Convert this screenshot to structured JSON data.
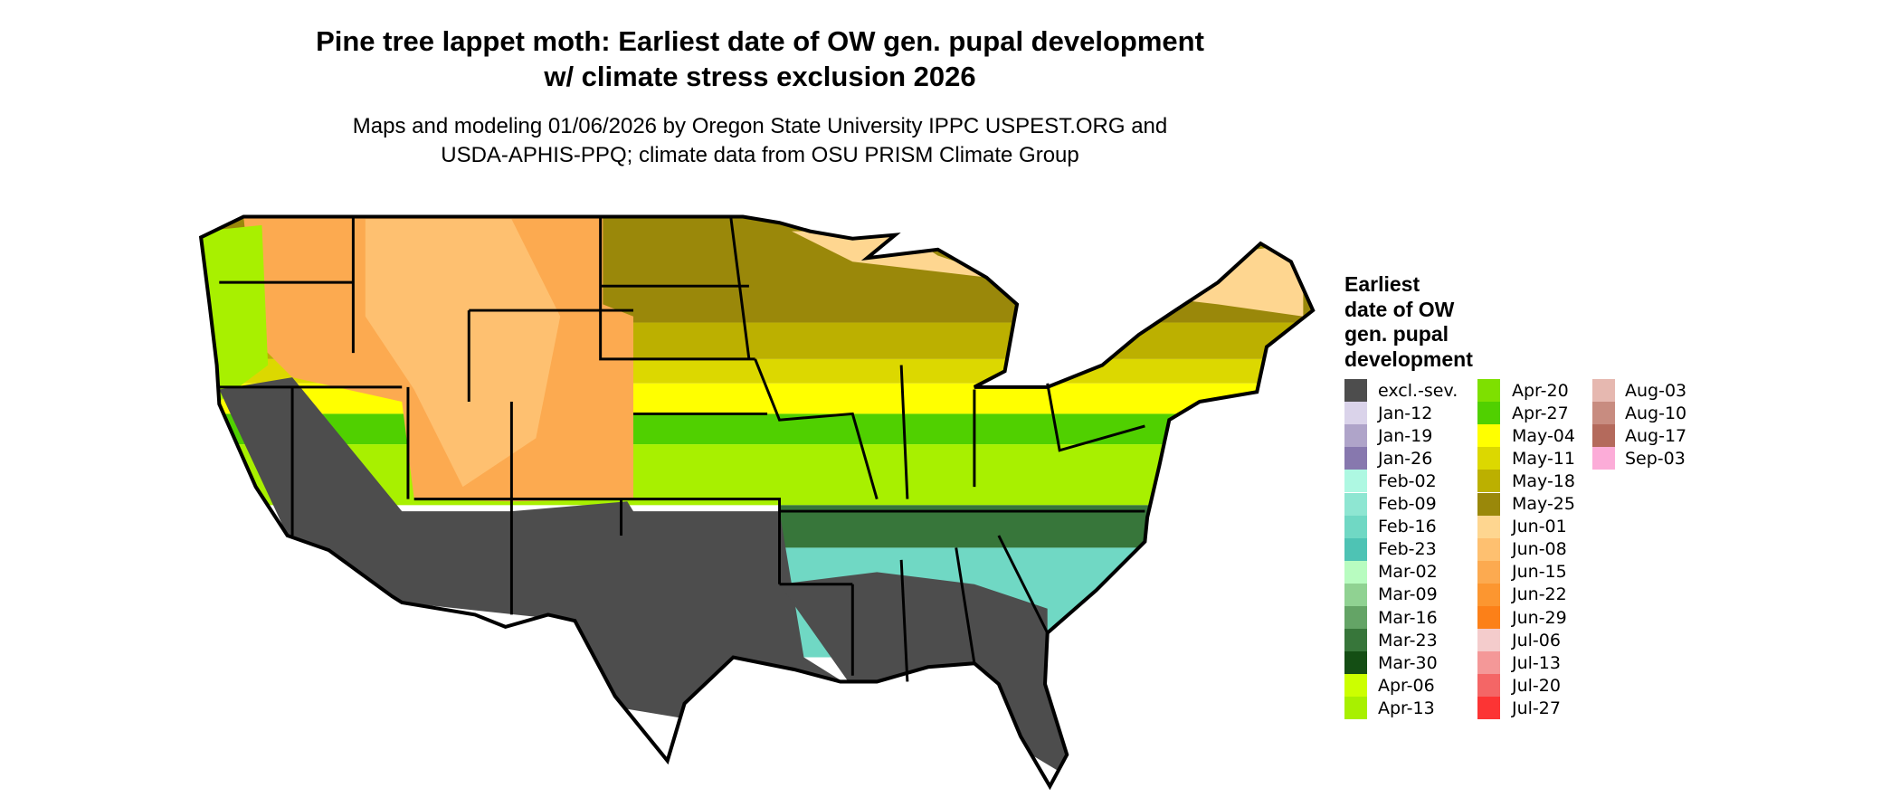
{
  "title": {
    "line1": "Pine tree lappet moth: Earliest date of OW gen. pupal development",
    "line2": "w/ climate stress exclusion 2026"
  },
  "subtitle": {
    "line1": "Maps and modeling 01/06/2026 by Oregon State University IPPC USPEST.ORG and",
    "line2": "USDA-APHIS-PPQ; climate data from OSU PRISM Climate Group"
  },
  "legend": {
    "title": "Earliest\ndate of OW\ngen. pupal\ndevelopment",
    "items": [
      {
        "label": "excl.-sev.",
        "color": "#4d4d4d"
      },
      {
        "label": "Jan-12",
        "color": "#dad3ea"
      },
      {
        "label": "Jan-19",
        "color": "#afa4c9"
      },
      {
        "label": "Jan-26",
        "color": "#8778ae"
      },
      {
        "label": "Feb-02",
        "color": "#aef8e2"
      },
      {
        "label": "Feb-09",
        "color": "#8ee6d2"
      },
      {
        "label": "Feb-16",
        "color": "#70d8c4"
      },
      {
        "label": "Feb-23",
        "color": "#4ec3b4"
      },
      {
        "label": "Mar-02",
        "color": "#b8fcc0"
      },
      {
        "label": "Mar-09",
        "color": "#90d292"
      },
      {
        "label": "Mar-16",
        "color": "#64a466"
      },
      {
        "label": "Mar-23",
        "color": "#37763a"
      },
      {
        "label": "Mar-30",
        "color": "#144e14"
      },
      {
        "label": "Apr-06",
        "color": "#ccff00"
      },
      {
        "label": "Apr-13",
        "color": "#a8f000"
      },
      {
        "label": "Apr-20",
        "color": "#7ee000"
      },
      {
        "label": "Apr-27",
        "color": "#50d000"
      },
      {
        "label": "May-04",
        "color": "#ffff00"
      },
      {
        "label": "May-11",
        "color": "#dcd800"
      },
      {
        "label": "May-18",
        "color": "#bcb000"
      },
      {
        "label": "May-25",
        "color": "#9a880a"
      },
      {
        "label": "Jun-01",
        "color": "#fed690"
      },
      {
        "label": "Jun-08",
        "color": "#fec070"
      },
      {
        "label": "Jun-15",
        "color": "#fcaa50"
      },
      {
        "label": "Jun-22",
        "color": "#fc9630"
      },
      {
        "label": "Jun-29",
        "color": "#fc8018"
      },
      {
        "label": "Jul-06",
        "color": "#f4cccc"
      },
      {
        "label": "Jul-13",
        "color": "#f49898"
      },
      {
        "label": "Jul-20",
        "color": "#f46666"
      },
      {
        "label": "Jul-27",
        "color": "#fc3434"
      },
      {
        "label": "Aug-03",
        "color": "#e6b8b0"
      },
      {
        "label": "Aug-10",
        "color": "#c88c80"
      },
      {
        "label": "Aug-17",
        "color": "#b46a5c"
      },
      {
        "label": "Sep-03",
        "color": "#fcacd8"
      }
    ]
  }
}
